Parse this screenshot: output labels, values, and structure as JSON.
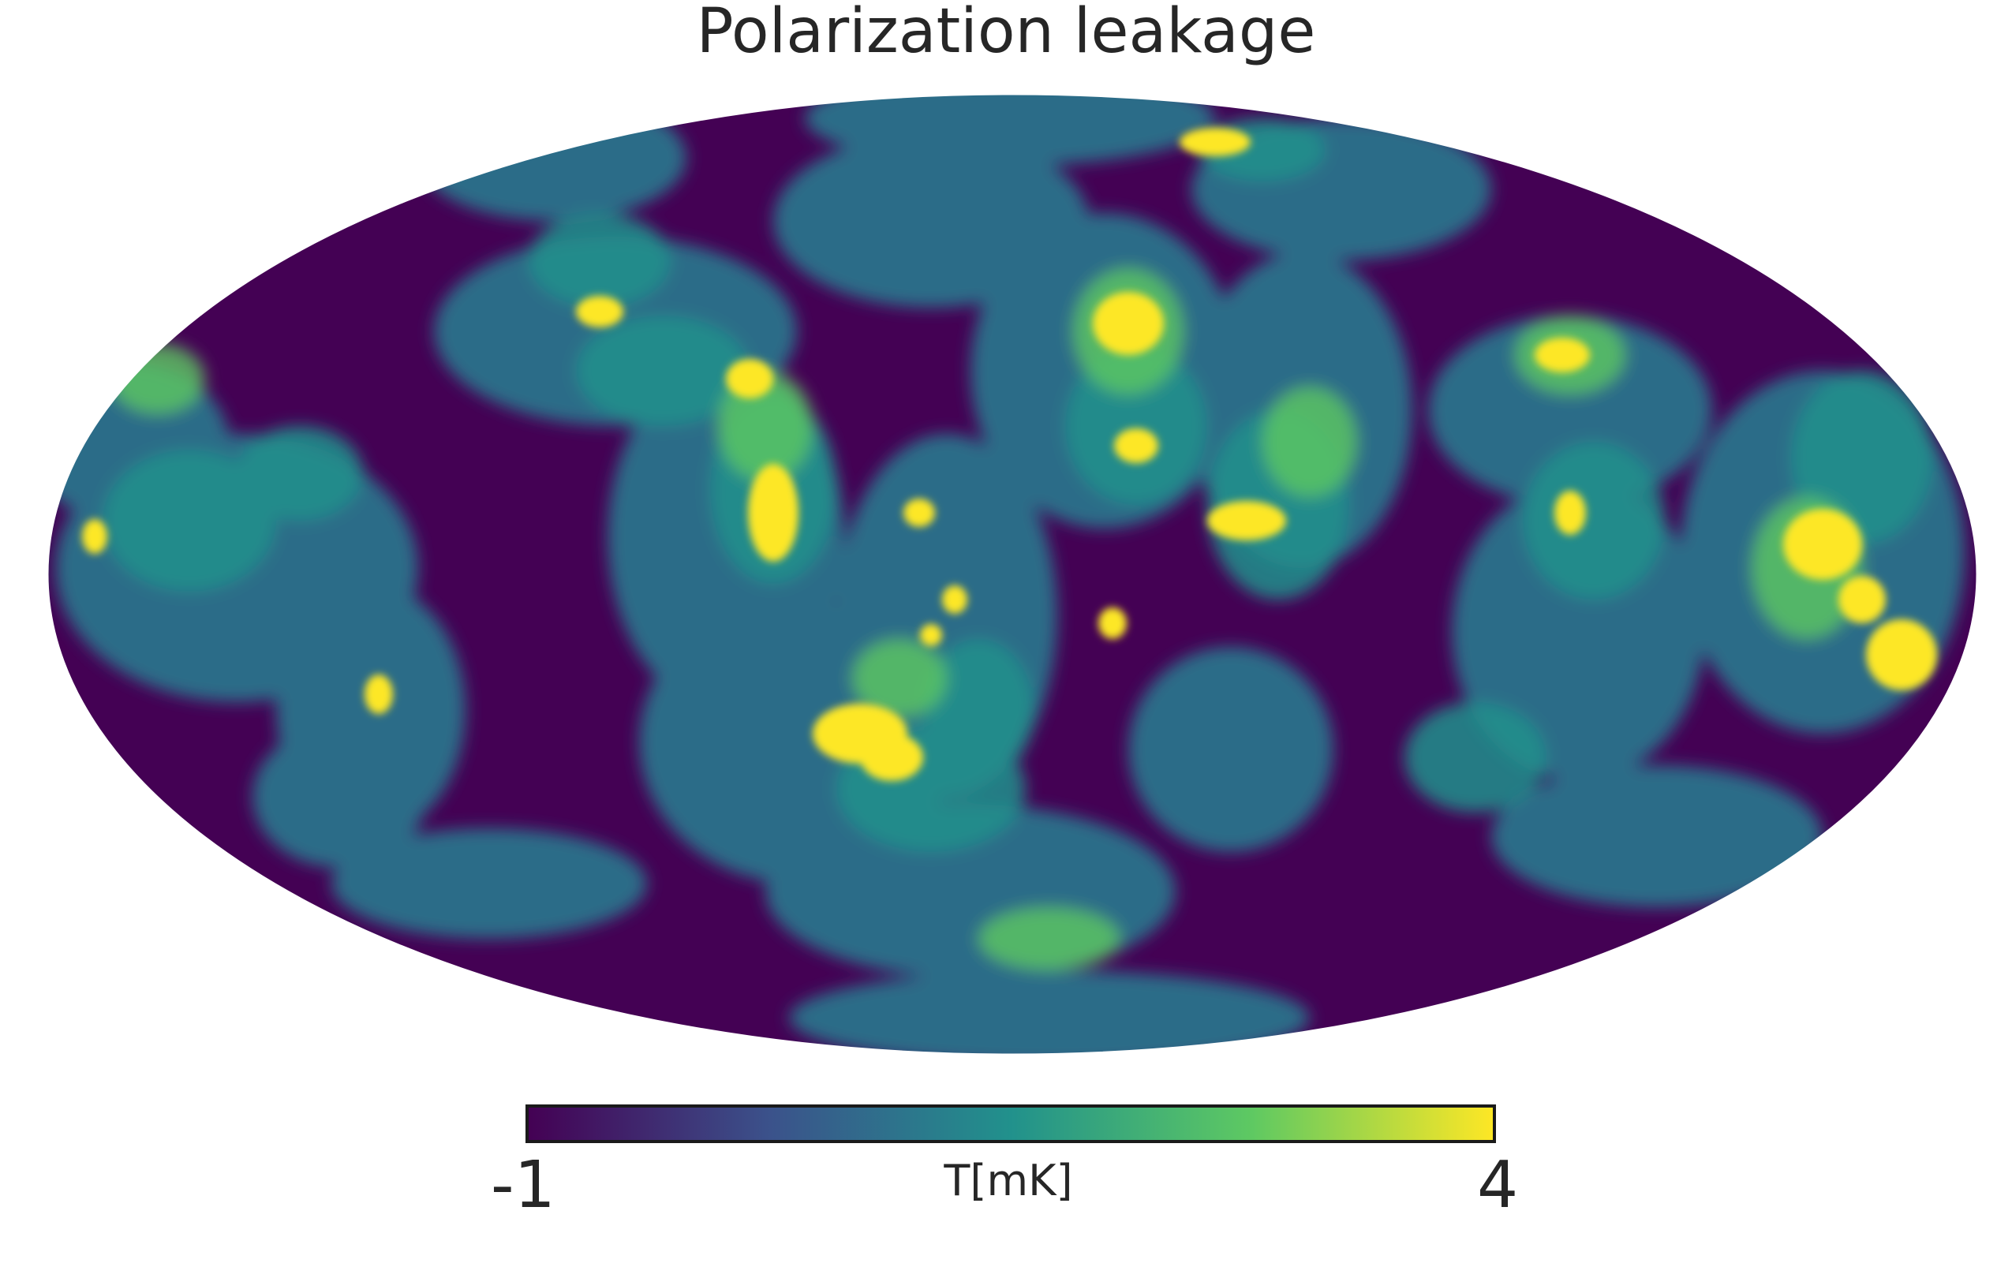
{
  "title": "Polarization leakage",
  "map": {
    "projection": "mollweide",
    "colormap": "viridis",
    "colormap_stops": [
      "#440154",
      "#3b528b",
      "#21918c",
      "#5ec962",
      "#fde725"
    ],
    "outside_color": "#ffffff"
  },
  "colorbar": {
    "min_label": "-1",
    "max_label": "4",
    "unit_label": "T[mK]",
    "range": [
      -1,
      4
    ],
    "orientation": "horizontal"
  },
  "chart_data": {
    "type": "heatmap",
    "title": "Polarization leakage",
    "colorbar_label": "T[mK]",
    "value_range": [
      -1,
      4
    ],
    "hot_spots_note": ""
  }
}
